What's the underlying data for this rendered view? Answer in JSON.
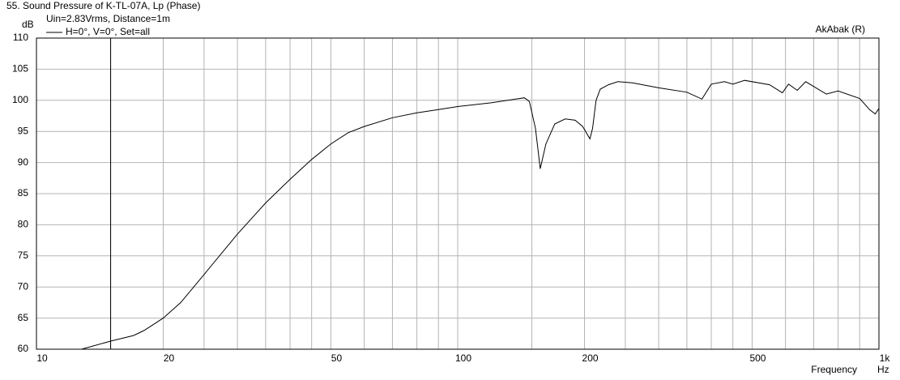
{
  "chart_data": {
    "type": "line",
    "title": "55. Sound Pressure of K-TL-07A, Lp (Phase)",
    "subtitle": "Uin=2.83Vrms, Distance=1m",
    "watermark": "AkAbak (R)",
    "y_label": "dB",
    "x_label": "Frequency",
    "x_unit": "Hz",
    "x_scale": "log",
    "xlim": [
      10,
      1000
    ],
    "xticks": [
      10,
      20,
      50,
      100,
      200,
      500,
      {
        "value": 1000,
        "label": "1k"
      }
    ],
    "xgrid": [
      15,
      25,
      30,
      35,
      40,
      45,
      60,
      70,
      80,
      90,
      150,
      250,
      300,
      350,
      400,
      450,
      600,
      700,
      800,
      900
    ],
    "marker_x": 15,
    "ylim": [
      60,
      110
    ],
    "yticks": [
      60,
      65,
      70,
      75,
      80,
      85,
      90,
      95,
      100,
      105,
      110
    ],
    "grid": true,
    "x": [
      12.8,
      15,
      17,
      18,
      20,
      22,
      25,
      30,
      35,
      40,
      45,
      50,
      55,
      60,
      70,
      80,
      90,
      100,
      120,
      144,
      148,
      153,
      157,
      162,
      170,
      180,
      190,
      198,
      206,
      209,
      213,
      218,
      228,
      240,
      260,
      300,
      350,
      380,
      400,
      430,
      450,
      480,
      550,
      590,
      610,
      640,
      670,
      750,
      800,
      900,
      950,
      980,
      1000
    ],
    "series": [
      {
        "name": "H=0°, V=0°, Set=all",
        "color": "#000000",
        "values": [
          60,
          61.3,
          62.2,
          63,
          65,
          67.5,
          72,
          78.5,
          83.5,
          87.3,
          90.5,
          93,
          94.8,
          95.8,
          97.2,
          98,
          98.5,
          99,
          99.6,
          100.4,
          99.8,
          95.5,
          89,
          93,
          96.2,
          97,
          96.8,
          95.8,
          93.8,
          95.5,
          100,
          101.8,
          102.5,
          103,
          102.8,
          102,
          101.3,
          100.2,
          102.6,
          103,
          102.6,
          103.2,
          102.5,
          101.2,
          102.6,
          101.6,
          103,
          101,
          101.5,
          100.3,
          98.5,
          97.8,
          98.7
        ]
      }
    ]
  }
}
